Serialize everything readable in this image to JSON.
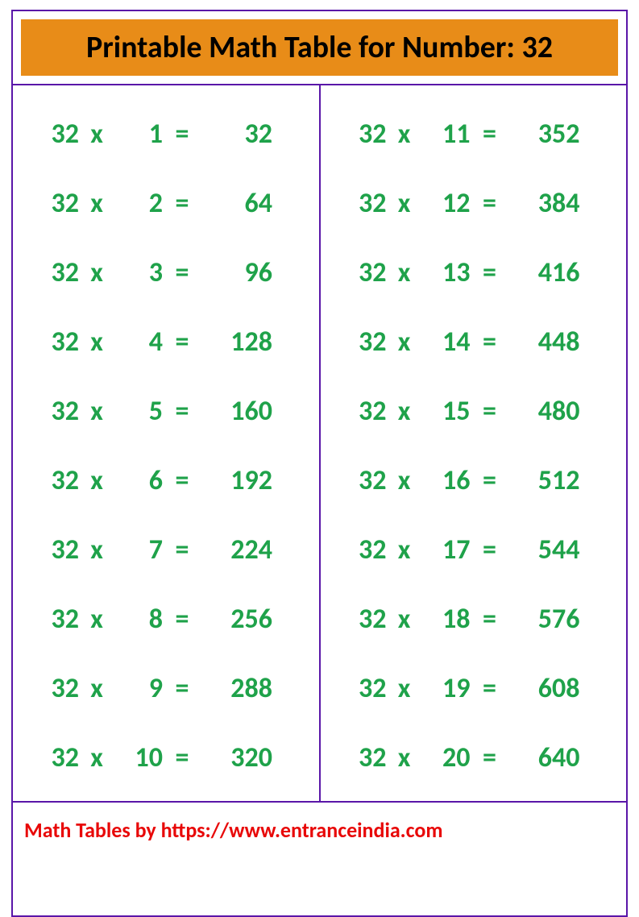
{
  "colors": {
    "border": "#5a16a8",
    "headerBg": "#e88c18",
    "headerText": "#000000",
    "rowText": "#1fa24a",
    "footerText": "#e80808",
    "background": "#ffffff"
  },
  "typography": {
    "headerFontSize": 38,
    "rowFontSize": 34,
    "footerFontSize": 26
  },
  "header": {
    "title": "Printable Math Table for Number: 32"
  },
  "symbols": {
    "times": "x",
    "equals": "="
  },
  "table": {
    "leftColumn": {
      "rows": [
        {
          "a": "32",
          "b": "1",
          "result": "32"
        },
        {
          "a": "32",
          "b": "2",
          "result": "64"
        },
        {
          "a": "32",
          "b": "3",
          "result": "96"
        },
        {
          "a": "32",
          "b": "4",
          "result": "128"
        },
        {
          "a": "32",
          "b": "5",
          "result": "160"
        },
        {
          "a": "32",
          "b": "6",
          "result": "192"
        },
        {
          "a": "32",
          "b": "7",
          "result": "224"
        },
        {
          "a": "32",
          "b": "8",
          "result": "256"
        },
        {
          "a": "32",
          "b": "9",
          "result": "288"
        },
        {
          "a": "32",
          "b": "10",
          "result": "320"
        }
      ]
    },
    "rightColumn": {
      "rows": [
        {
          "a": "32",
          "b": "11",
          "result": "352"
        },
        {
          "a": "32",
          "b": "12",
          "result": "384"
        },
        {
          "a": "32",
          "b": "13",
          "result": "416"
        },
        {
          "a": "32",
          "b": "14",
          "result": "448"
        },
        {
          "a": "32",
          "b": "15",
          "result": "480"
        },
        {
          "a": "32",
          "b": "16",
          "result": "512"
        },
        {
          "a": "32",
          "b": "17",
          "result": "544"
        },
        {
          "a": "32",
          "b": "18",
          "result": "576"
        },
        {
          "a": "32",
          "b": "19",
          "result": "608"
        },
        {
          "a": "32",
          "b": "20",
          "result": "640"
        }
      ]
    }
  },
  "footer": {
    "text": "Math Tables by https://www.entranceindia.com"
  }
}
